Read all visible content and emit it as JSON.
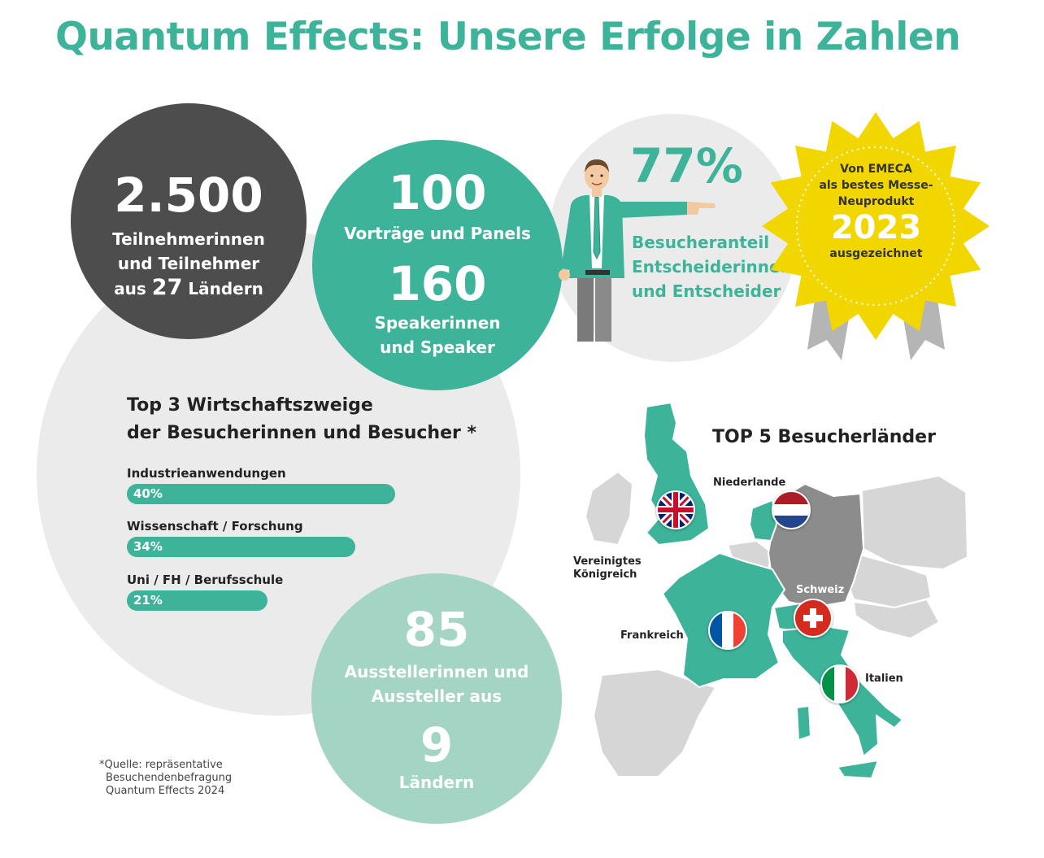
{
  "title": "Quantum Effects: Unsere Erfolge in Zahlen",
  "participants": {
    "number": "2.500",
    "line1": "Teilnehmerinnen",
    "line2": "und Teilnehmer",
    "line3_pre": "aus",
    "countries": "27",
    "line3_post": "Ländern"
  },
  "talks": {
    "number": "100",
    "label": "Vorträge und Panels",
    "speaker_number": "160",
    "speaker_line1": "Speakerinnen",
    "speaker_line2": "und Speaker"
  },
  "decision_makers": {
    "percent": "77%",
    "line1": "Besucheranteil",
    "line2": "Entscheiderinnen",
    "line3": "und Entscheider"
  },
  "award": {
    "line1": "Von EMECA",
    "line2": "als bestes Messe-",
    "line3": "Neuprodukt",
    "year": "2023",
    "line4": "ausgezeichnet",
    "star_color": "#f2d600"
  },
  "industries": {
    "heading_line1": "Top 3 Wirtschaftszweige",
    "heading_line2": "der Besucherinnen und Besucher",
    "heading_mark": "*",
    "items": [
      {
        "label": "Industrieanwendungen",
        "value_text": "40%",
        "value": 40
      },
      {
        "label": "Wissenschaft / Forschung",
        "value_text": "34%",
        "value": 34
      },
      {
        "label": "Uni / FH / Berufsschule",
        "value_text": "21%",
        "value": 21
      }
    ]
  },
  "exhibitors": {
    "number": "85",
    "line1": "Ausstellerinnen und",
    "line2": "Aussteller aus",
    "countries": "9",
    "line3": "Ländern"
  },
  "footnote": {
    "line1": "*Quelle: repräsentative",
    "line2": "Besuchendenbefragung",
    "line3": "Quantum Effects 2024"
  },
  "map": {
    "heading": "TOP 5 Besucherländer",
    "countries": [
      {
        "name": "Niederlande",
        "flag": "nl"
      },
      {
        "name_line1": "Vereinigtes",
        "name_line2": "Königreich",
        "flag": "uk"
      },
      {
        "name": "Schweiz",
        "flag": "ch"
      },
      {
        "name": "Frankreich",
        "flag": "fr"
      },
      {
        "name": "Italien",
        "flag": "it"
      }
    ]
  },
  "colors": {
    "accent": "#3db39a",
    "dark": "#4d4d4d",
    "light": "#ebebeb",
    "mint": "#a3d4c4",
    "map_grey": "#d6d6d6",
    "map_dark": "#8c8c8c"
  }
}
